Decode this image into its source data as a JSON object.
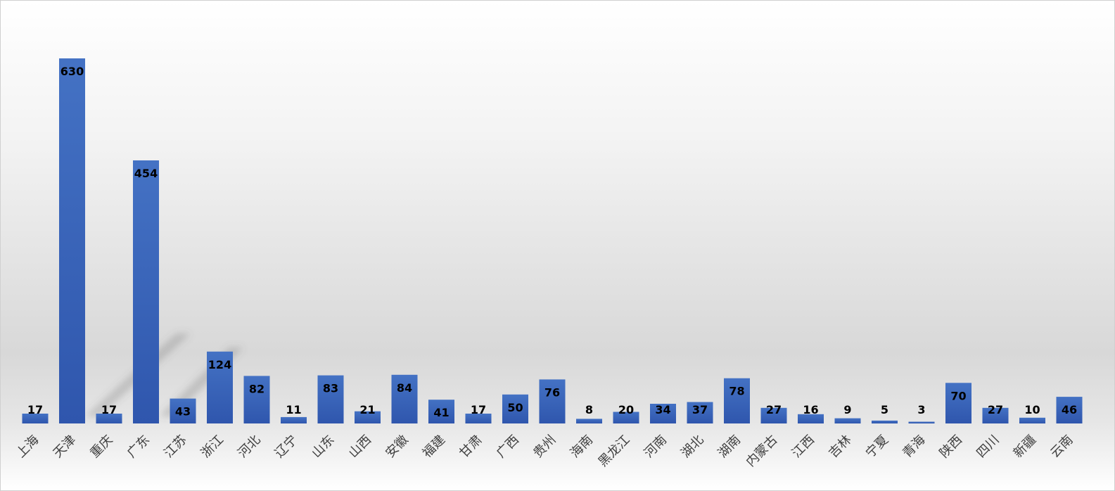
{
  "chart_data": {
    "type": "bar",
    "title": "",
    "xlabel": "",
    "ylabel": "",
    "categories": [
      "上海",
      "天津",
      "重庆",
      "广东",
      "江苏",
      "浙江",
      "河北",
      "辽宁",
      "山东",
      "山西",
      "安徽",
      "福建",
      "甘肃",
      "广西",
      "贵州",
      "海南",
      "黑龙江",
      "河南",
      "湖北",
      "湖南",
      "内蒙古",
      "江西",
      "吉林",
      "宁夏",
      "青海",
      "陕西",
      "四川",
      "新疆",
      "云南"
    ],
    "values": [
      17,
      630,
      17,
      454,
      43,
      124,
      82,
      11,
      83,
      21,
      84,
      41,
      17,
      50,
      76,
      8,
      20,
      34,
      37,
      78,
      27,
      16,
      9,
      5,
      3,
      70,
      27,
      10,
      46
    ],
    "ylim": [
      0,
      630
    ],
    "grid": false,
    "legend": "none",
    "data_labels": true,
    "bar_color": "#4472c4",
    "bar_color_dark": "#2f56ad",
    "label_color": "#000000",
    "tick_label_color": "#404040"
  }
}
